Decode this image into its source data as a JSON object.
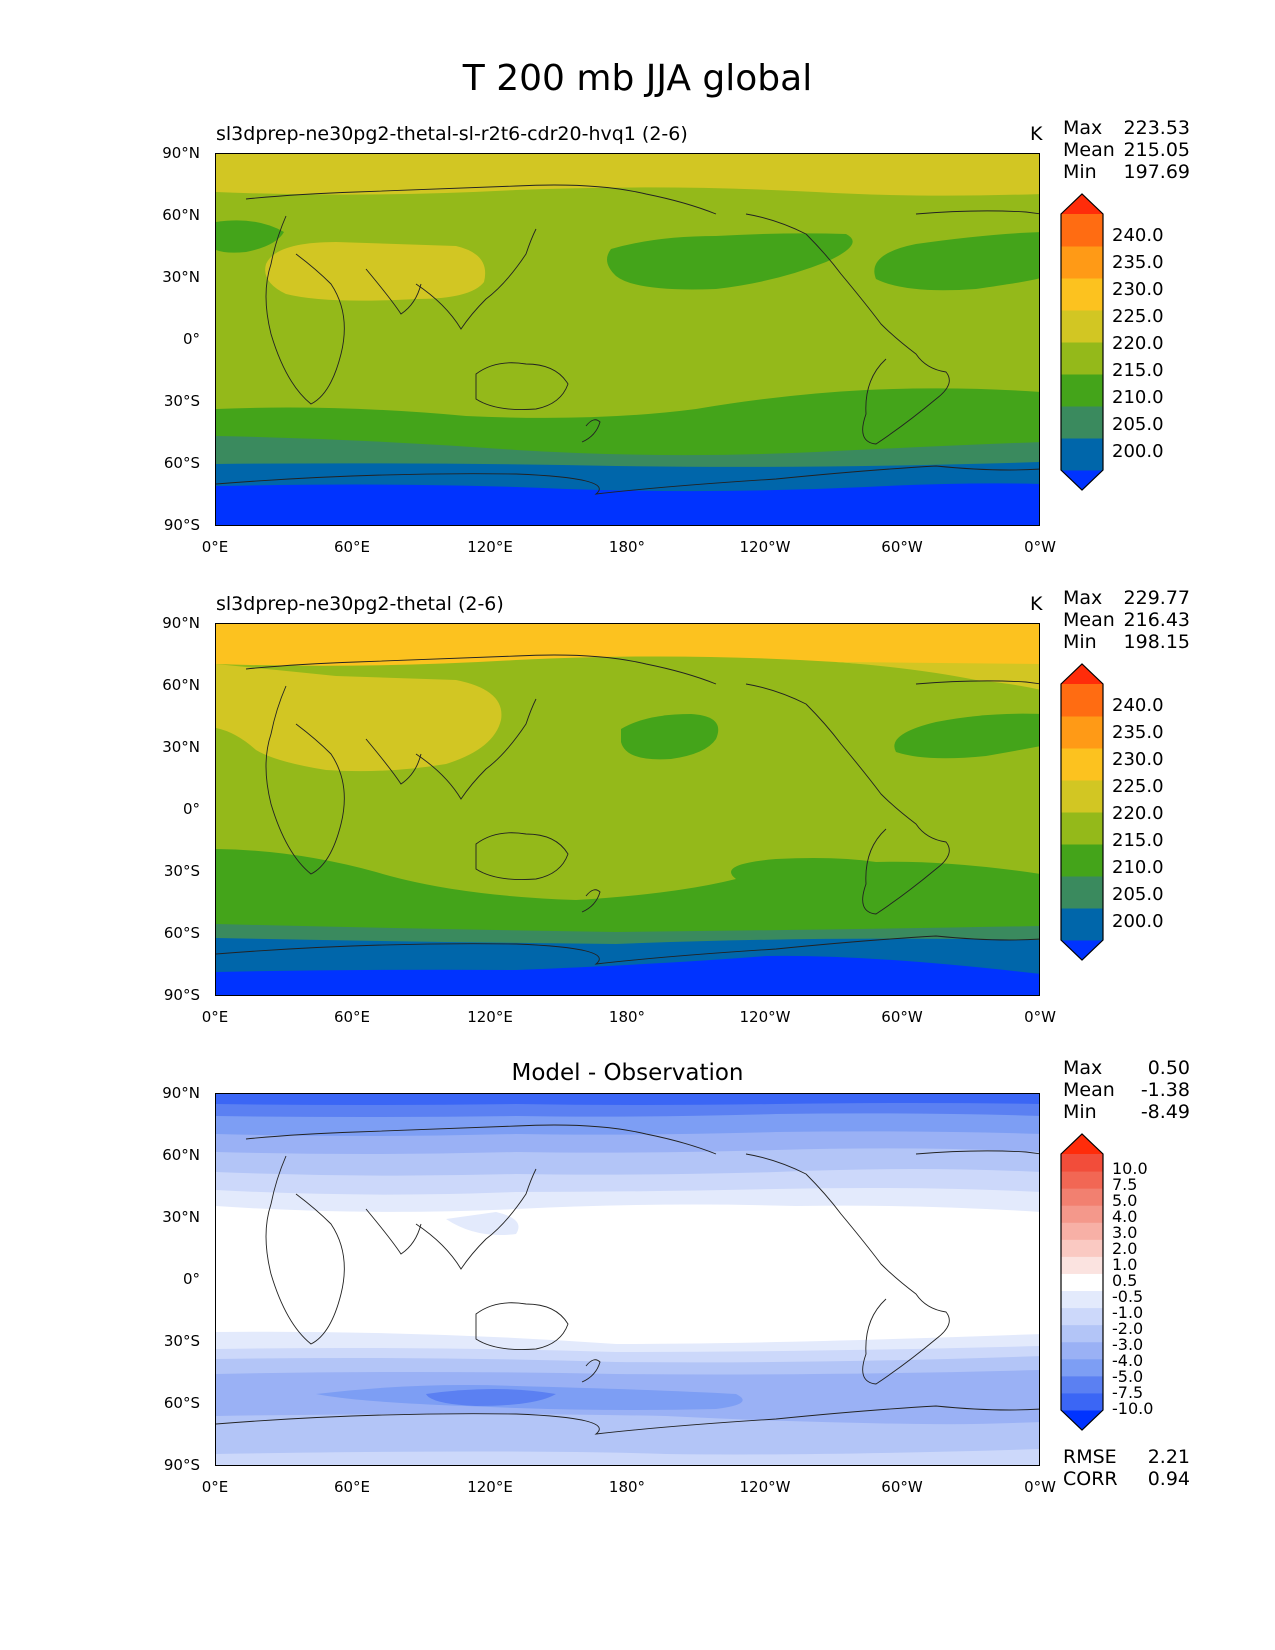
{
  "figure": {
    "title": "T 200 mb JJA global"
  },
  "axes": {
    "lat_ticks": [
      "90°N",
      "60°N",
      "30°N",
      "0°",
      "30°S",
      "60°S",
      "90°S"
    ],
    "lon_ticks": [
      "0°E",
      "60°E",
      "120°E",
      "180°",
      "120°W",
      "60°W",
      "0°W"
    ]
  },
  "colors": {
    "abs_levels": [
      "#0033ff",
      "#0066aa",
      "#3a8a5e",
      "#44a41a",
      "#94b91a",
      "#d2c623",
      "#fcc21f",
      "#ff9a16",
      "#ff6c12",
      "#ff2c0a"
    ],
    "diff_levels": [
      "#0033ff",
      "#3b66f5",
      "#5b80f2",
      "#7d9ef4",
      "#9ab1f5",
      "#b3c5f7",
      "#ccd8fa",
      "#e3eafc",
      "#ffffff",
      "#fbe3e0",
      "#fac9c2",
      "#f7b0a6",
      "#f4988b",
      "#f28070",
      "#f26754",
      "#f24d3a",
      "#ff2c0a"
    ]
  },
  "panels": [
    {
      "title": "sl3dprep-ne30pg2-thetal-sl-r2t6-cdr20-hvq1 (2-6)",
      "unit": "K",
      "stats": {
        "max_label": "Max",
        "max": "223.53",
        "mean_label": "Mean",
        "mean": "215.05",
        "min_label": "Min",
        "min": "197.69"
      },
      "colorbar_labels": [
        "240.0",
        "235.0",
        "230.0",
        "225.0",
        "220.0",
        "215.0",
        "210.0",
        "205.0",
        "200.0"
      ]
    },
    {
      "title": "sl3dprep-ne30pg2-thetal (2-6)",
      "unit": "K",
      "stats": {
        "max_label": "Max",
        "max": "229.77",
        "mean_label": "Mean",
        "mean": "216.43",
        "min_label": "Min",
        "min": "198.15"
      },
      "colorbar_labels": [
        "240.0",
        "235.0",
        "230.0",
        "225.0",
        "220.0",
        "215.0",
        "210.0",
        "205.0",
        "200.0"
      ]
    },
    {
      "title": "Model - Observation",
      "stats": {
        "max_label": "Max",
        "max": "0.50",
        "mean_label": "Mean",
        "mean": "-1.38",
        "min_label": "Min",
        "min": "-8.49"
      },
      "colorbar_labels": [
        "10.0",
        "7.5",
        "5.0",
        "4.0",
        "3.0",
        "2.0",
        "1.0",
        "0.5",
        "-0.5",
        "-1.0",
        "-2.0",
        "-3.0",
        "-4.0",
        "-5.0",
        "-7.5",
        "-10.0"
      ],
      "extra_stats": {
        "rmse_label": "RMSE",
        "rmse": "2.21",
        "corr_label": "CORR",
        "corr": "0.94"
      }
    }
  ]
}
